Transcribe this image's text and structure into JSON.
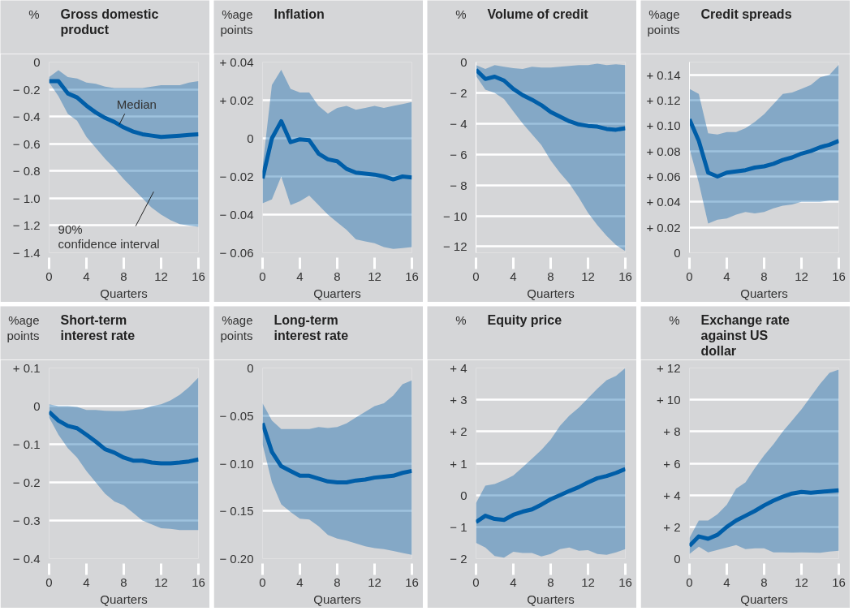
{
  "chart_data": [
    {
      "type": "line",
      "title": "Gross domestic product",
      "ylabel": "%",
      "xlabel": "Quarters",
      "x": [
        0,
        1,
        2,
        3,
        4,
        5,
        6,
        7,
        8,
        9,
        10,
        11,
        12,
        13,
        14,
        15,
        16
      ],
      "xlim": [
        0,
        16
      ],
      "xticks": [
        0,
        4,
        8,
        12,
        16
      ],
      "ylim": [
        -1.4,
        0
      ],
      "yticks": [
        0,
        {
          "value": -0.2,
          "label": "− 0.2"
        },
        {
          "value": -0.4,
          "label": "− 0.4"
        },
        {
          "value": -0.6,
          "label": "− 0.6"
        },
        {
          "value": -0.8,
          "label": "− 0.8"
        },
        {
          "value": -1.0,
          "label": "− 1.0"
        },
        {
          "value": -1.2,
          "label": "− 1.2"
        },
        {
          "value": -1.4,
          "label": "− 1.4"
        }
      ],
      "grid": "y",
      "series": [
        {
          "color": "#005ea8",
          "values": [
            -0.14,
            -0.14,
            -0.23,
            -0.26,
            -0.32,
            -0.37,
            -0.41,
            -0.44,
            -0.48,
            -0.51,
            -0.53,
            -0.54,
            -0.55,
            -0.545,
            -0.54,
            -0.535,
            -0.53
          ],
          "lower": [
            -0.15,
            -0.25,
            -0.38,
            -0.43,
            -0.55,
            -0.63,
            -0.71,
            -0.78,
            -0.86,
            -0.93,
            -1.0,
            -1.07,
            -1.12,
            -1.16,
            -1.19,
            -1.2,
            -1.21
          ],
          "upper": [
            -0.11,
            -0.06,
            -0.11,
            -0.12,
            -0.15,
            -0.16,
            -0.18,
            -0.19,
            -0.19,
            -0.19,
            -0.19,
            -0.18,
            -0.17,
            -0.17,
            -0.17,
            -0.15,
            -0.14
          ]
        }
      ],
      "annotations": [
        {
          "text": "Median",
          "x": 7.5,
          "y": -0.46
        },
        "90% confidence interval"
      ]
    },
    {
      "type": "line",
      "title": "Inflation",
      "ylabel": "%age points",
      "xlabel": "Quarters",
      "x": [
        0,
        1,
        2,
        3,
        4,
        5,
        6,
        7,
        8,
        9,
        10,
        11,
        12,
        13,
        14,
        15,
        16
      ],
      "xlim": [
        0,
        16
      ],
      "xticks": [
        0,
        4,
        8,
        12,
        16
      ],
      "ylim": [
        -0.06,
        0.04
      ],
      "yticks": [
        {
          "value": 0.04,
          "label": "+ 0.04"
        },
        {
          "value": 0.02,
          "label": "+ 0.02"
        },
        0,
        {
          "value": -0.02,
          "label": "− 0.02"
        },
        {
          "value": -0.04,
          "label": "− 0.04"
        },
        {
          "value": -0.06,
          "label": "− 0.06"
        }
      ],
      "grid": "y",
      "series": [
        {
          "color": "#005ea8",
          "values": [
            -0.021,
            0.0,
            0.009,
            -0.002,
            -0.0005,
            -0.001,
            -0.008,
            -0.011,
            -0.012,
            -0.016,
            -0.018,
            -0.0185,
            -0.019,
            -0.02,
            -0.0215,
            -0.02,
            -0.0205
          ],
          "lower": [
            -0.034,
            -0.032,
            -0.02,
            -0.035,
            -0.033,
            -0.03,
            -0.035,
            -0.04,
            -0.044,
            -0.048,
            -0.053,
            -0.054,
            -0.055,
            -0.057,
            -0.058,
            -0.0575,
            -0.057
          ],
          "upper": [
            -0.015,
            0.028,
            0.036,
            0.026,
            0.024,
            0.024,
            0.017,
            0.013,
            0.016,
            0.017,
            0.015,
            0.016,
            0.017,
            0.016,
            0.017,
            0.018,
            0.019
          ]
        }
      ]
    },
    {
      "type": "line",
      "title": "Volume of credit",
      "ylabel": "%",
      "xlabel": "Quarters",
      "x": [
        0,
        1,
        2,
        3,
        4,
        5,
        6,
        7,
        8,
        9,
        10,
        11,
        12,
        13,
        14,
        15,
        16
      ],
      "xlim": [
        0,
        16
      ],
      "xticks": [
        0,
        4,
        8,
        12,
        16
      ],
      "ylim": [
        -12.4,
        0
      ],
      "yticks": [
        0,
        {
          "value": -2,
          "label": "− 2"
        },
        {
          "value": -4,
          "label": "− 4"
        },
        {
          "value": -6,
          "label": "− 6"
        },
        {
          "value": -8,
          "label": "− 8"
        },
        {
          "value": -10,
          "label": "− 10"
        },
        {
          "value": -12,
          "label": "− 12"
        }
      ],
      "grid": "y",
      "series": [
        {
          "color": "#005ea8",
          "values": [
            -0.5,
            -1.1,
            -0.95,
            -1.2,
            -1.75,
            -2.15,
            -2.45,
            -2.8,
            -3.25,
            -3.55,
            -3.85,
            -4.05,
            -4.15,
            -4.2,
            -4.35,
            -4.4,
            -4.3
          ],
          "lower": [
            -0.9,
            -1.8,
            -2.0,
            -2.4,
            -3.2,
            -4.0,
            -4.7,
            -5.4,
            -6.4,
            -7.2,
            -7.9,
            -8.8,
            -9.8,
            -10.6,
            -11.3,
            -11.9,
            -12.3
          ],
          "upper": [
            -0.2,
            -0.45,
            -0.2,
            -0.3,
            -0.4,
            -0.45,
            -0.3,
            -0.35,
            -0.35,
            -0.3,
            -0.25,
            -0.2,
            -0.2,
            -0.1,
            -0.2,
            -0.15,
            -0.2
          ]
        }
      ]
    },
    {
      "type": "line",
      "title": "Credit spreads",
      "ylabel": "%age points",
      "xlabel": "Quarters",
      "x": [
        0,
        1,
        2,
        3,
        4,
        5,
        6,
        7,
        8,
        9,
        10,
        11,
        12,
        13,
        14,
        15,
        16
      ],
      "xlim": [
        0,
        16
      ],
      "xticks": [
        0,
        4,
        8,
        12,
        16
      ],
      "ylim": [
        0,
        0.15
      ],
      "yticks": [
        {
          "value": 0.14,
          "label": "+ 0.14"
        },
        {
          "value": 0.12,
          "label": "+ 0.12"
        },
        {
          "value": 0.1,
          "label": "+ 0.10"
        },
        {
          "value": 0.08,
          "label": "+ 0.08"
        },
        {
          "value": 0.06,
          "label": "+ 0.06"
        },
        {
          "value": 0.04,
          "label": "+ 0.04"
        },
        {
          "value": 0.02,
          "label": "+ 0.02"
        },
        0
      ],
      "grid": "y",
      "series": [
        {
          "color": "#005ea8",
          "values": [
            0.105,
            0.088,
            0.063,
            0.06,
            0.063,
            0.064,
            0.065,
            0.067,
            0.068,
            0.07,
            0.073,
            0.075,
            0.078,
            0.08,
            0.083,
            0.085,
            0.088
          ],
          "lower": [
            0.082,
            0.055,
            0.023,
            0.026,
            0.027,
            0.03,
            0.032,
            0.031,
            0.032,
            0.035,
            0.037,
            0.038,
            0.04,
            0.04,
            0.04,
            0.041,
            0.041
          ],
          "upper": [
            0.129,
            0.125,
            0.094,
            0.093,
            0.095,
            0.095,
            0.098,
            0.103,
            0.109,
            0.117,
            0.125,
            0.126,
            0.129,
            0.132,
            0.138,
            0.14,
            0.148
          ]
        }
      ]
    },
    {
      "type": "line",
      "title": "Short-term interest rate",
      "ylabel": "%age points",
      "xlabel": "Quarters",
      "x": [
        0,
        1,
        2,
        3,
        4,
        5,
        6,
        7,
        8,
        9,
        10,
        11,
        12,
        13,
        14,
        15,
        16
      ],
      "xlim": [
        0,
        16
      ],
      "xticks": [
        0,
        4,
        8,
        12,
        16
      ],
      "ylim": [
        -0.4,
        0.1
      ],
      "yticks": [
        {
          "value": 0.1,
          "label": "+ 0.1"
        },
        0,
        {
          "value": -0.1,
          "label": "− 0.1"
        },
        {
          "value": -0.2,
          "label": "− 0.2"
        },
        {
          "value": -0.3,
          "label": "− 0.3"
        },
        {
          "value": -0.4,
          "label": "− 0.4"
        }
      ],
      "grid": "y",
      "series": [
        {
          "color": "#005ea8",
          "values": [
            -0.015,
            -0.038,
            -0.052,
            -0.058,
            -0.075,
            -0.093,
            -0.113,
            -0.122,
            -0.135,
            -0.143,
            -0.143,
            -0.148,
            -0.15,
            -0.15,
            -0.148,
            -0.145,
            -0.14
          ],
          "lower": [
            -0.03,
            -0.075,
            -0.11,
            -0.135,
            -0.17,
            -0.2,
            -0.23,
            -0.25,
            -0.26,
            -0.28,
            -0.3,
            -0.31,
            -0.32,
            -0.322,
            -0.325,
            -0.325,
            -0.325
          ],
          "upper": [
            0.005,
            0.0,
            0.0,
            -0.002,
            -0.01,
            -0.01,
            -0.012,
            -0.013,
            -0.013,
            -0.01,
            -0.008,
            0.0,
            0.005,
            0.015,
            0.03,
            0.05,
            0.075
          ]
        }
      ]
    },
    {
      "type": "line",
      "title": "Long-term interest rate",
      "ylabel": "%age points",
      "xlabel": "Quarters",
      "x": [
        0,
        1,
        2,
        3,
        4,
        5,
        6,
        7,
        8,
        9,
        10,
        11,
        12,
        13,
        14,
        15,
        16
      ],
      "xlim": [
        0,
        16
      ],
      "xticks": [
        0,
        4,
        8,
        12,
        16
      ],
      "ylim": [
        -0.2,
        0
      ],
      "yticks": [
        0,
        {
          "value": -0.05,
          "label": "− 0.05"
        },
        {
          "value": -0.1,
          "label": "− 0.10"
        },
        {
          "value": -0.15,
          "label": "− 0.15"
        },
        {
          "value": -0.2,
          "label": "− 0.20"
        }
      ],
      "grid": "y",
      "series": [
        {
          "color": "#005ea8",
          "values": [
            -0.058,
            -0.088,
            -0.103,
            -0.108,
            -0.113,
            -0.113,
            -0.116,
            -0.119,
            -0.12,
            -0.12,
            -0.118,
            -0.117,
            -0.115,
            -0.114,
            -0.113,
            -0.11,
            -0.108
          ],
          "lower": [
            -0.08,
            -0.12,
            -0.143,
            -0.151,
            -0.158,
            -0.159,
            -0.166,
            -0.175,
            -0.179,
            -0.181,
            -0.184,
            -0.187,
            -0.189,
            -0.19,
            -0.192,
            -0.194,
            -0.196
          ],
          "upper": [
            -0.037,
            -0.055,
            -0.064,
            -0.064,
            -0.064,
            -0.064,
            -0.062,
            -0.063,
            -0.062,
            -0.058,
            -0.052,
            -0.046,
            -0.04,
            -0.037,
            -0.029,
            -0.017,
            -0.013
          ]
        }
      ]
    },
    {
      "type": "line",
      "title": "Equity price",
      "ylabel": "%",
      "xlabel": "Quarters",
      "x": [
        0,
        1,
        2,
        3,
        4,
        5,
        6,
        7,
        8,
        9,
        10,
        11,
        12,
        13,
        14,
        15,
        16
      ],
      "xlim": [
        0,
        16
      ],
      "xticks": [
        0,
        4,
        8,
        12,
        16
      ],
      "ylim": [
        -2,
        4
      ],
      "yticks": [
        {
          "value": 4,
          "label": "+ 4"
        },
        {
          "value": 3,
          "label": "+ 3"
        },
        {
          "value": 2,
          "label": "+ 2"
        },
        {
          "value": 1,
          "label": "+ 1"
        },
        0,
        {
          "value": -1,
          "label": "− 1"
        },
        {
          "value": -2,
          "label": "− 2"
        }
      ],
      "grid": "y",
      "series": [
        {
          "color": "#005ea8",
          "values": [
            -0.85,
            -0.65,
            -0.75,
            -0.78,
            -0.62,
            -0.52,
            -0.45,
            -0.3,
            -0.13,
            0.0,
            0.13,
            0.25,
            0.4,
            0.53,
            0.6,
            0.7,
            0.82
          ],
          "lower": [
            -1.5,
            -1.65,
            -1.92,
            -1.97,
            -1.78,
            -1.82,
            -1.82,
            -1.93,
            -1.85,
            -1.7,
            -1.65,
            -1.75,
            -1.73,
            -1.85,
            -1.88,
            -1.8,
            -1.7
          ],
          "upper": [
            -0.25,
            0.3,
            0.35,
            0.47,
            0.62,
            0.88,
            1.15,
            1.42,
            1.75,
            2.18,
            2.5,
            2.75,
            3.05,
            3.35,
            3.62,
            3.75,
            4.0
          ]
        }
      ]
    },
    {
      "type": "line",
      "title": "Exchange rate against US dollar",
      "ylabel": "%",
      "xlabel": "Quarters",
      "x": [
        0,
        1,
        2,
        3,
        4,
        5,
        6,
        7,
        8,
        9,
        10,
        11,
        12,
        13,
        14,
        15,
        16
      ],
      "xlim": [
        0,
        16
      ],
      "xticks": [
        0,
        4,
        8,
        12,
        16
      ],
      "ylim": [
        0,
        12
      ],
      "yticks": [
        {
          "value": 12,
          "label": "+ 12"
        },
        {
          "value": 10,
          "label": "+ 10"
        },
        {
          "value": 8,
          "label": "+ 8"
        },
        {
          "value": 6,
          "label": "+ 6"
        },
        {
          "value": 4,
          "label": "+ 4"
        },
        {
          "value": 2,
          "label": "+ 2"
        },
        0
      ],
      "grid": "y",
      "series": [
        {
          "color": "#005ea8",
          "values": [
            0.8,
            1.4,
            1.25,
            1.5,
            2.0,
            2.4,
            2.7,
            3.0,
            3.35,
            3.65,
            3.9,
            4.1,
            4.2,
            4.15,
            4.2,
            4.25,
            4.3
          ],
          "lower": [
            0.3,
            0.75,
            0.4,
            0.55,
            0.7,
            0.85,
            0.6,
            0.65,
            0.65,
            0.4,
            0.4,
            0.38,
            0.4,
            0.38,
            0.37,
            0.45,
            0.5
          ],
          "upper": [
            1.3,
            2.4,
            2.4,
            2.8,
            3.4,
            4.4,
            4.8,
            5.7,
            6.5,
            7.2,
            8.0,
            8.7,
            9.4,
            10.2,
            11.0,
            11.7,
            11.9
          ]
        }
      ]
    }
  ]
}
